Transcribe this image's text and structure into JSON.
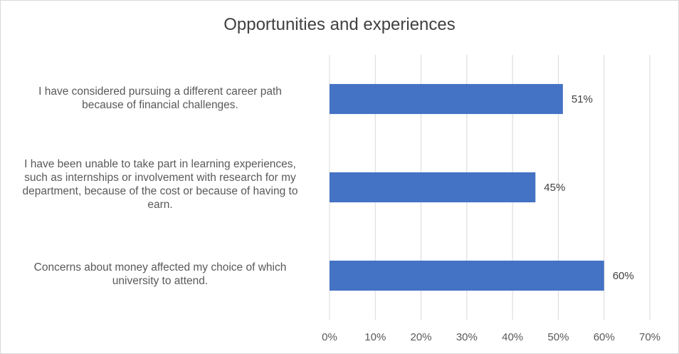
{
  "chart_data": {
    "type": "bar",
    "orientation": "horizontal",
    "title": "Opportunities and experiences",
    "categories": [
      "I have considered pursuing a different career path because of financial challenges.",
      "I have been unable to take part in learning experiences, such as internships or involvement with research for my department, because of the cost or because of having to earn.",
      "Concerns about money affected my choice of which university to attend."
    ],
    "category_lines": [
      [
        "I have considered pursuing a different career path",
        "because of financial challenges."
      ],
      [
        "I have been unable to take part in learning experiences,",
        "such as internships or involvement with research for my",
        "department, because of the cost or because of having to",
        "earn."
      ],
      [
        "Concerns about money affected my choice of which",
        "university to attend."
      ]
    ],
    "values": [
      51,
      45,
      60
    ],
    "data_labels": [
      "51%",
      "45%",
      "60%"
    ],
    "xlim": [
      0,
      70
    ],
    "x_ticks": [
      0,
      10,
      20,
      30,
      40,
      50,
      60,
      70
    ],
    "x_tick_labels": [
      "0%",
      "10%",
      "20%",
      "30%",
      "40%",
      "50%",
      "60%",
      "70%"
    ],
    "xlabel": "",
    "ylabel": "",
    "grid": "vertical",
    "legend": "none",
    "bar_color": "#4472C4",
    "gridline_color": "#D9D9D9"
  }
}
